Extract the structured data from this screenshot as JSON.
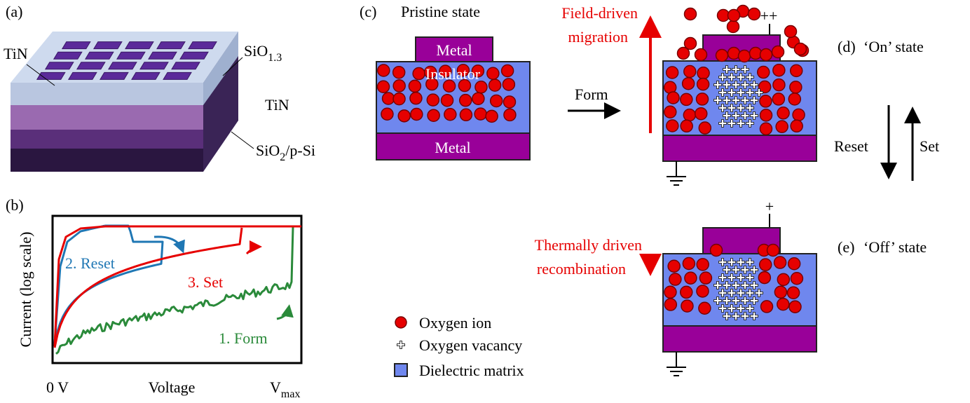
{
  "panel_a": {
    "label": "(a)",
    "top_electrode": "TiN",
    "oxide": {
      "text": "SiO",
      "subscript": "1.3"
    },
    "bottom_electrode": "TiN",
    "substrate": {
      "text": "SiO",
      "subscript": "2",
      "suffix": "/p-Si"
    }
  },
  "panel_b": {
    "label": "(b)",
    "y_axis_title": "Current (log scale)",
    "x_axis_title": "Voltage",
    "x_start": "0 V",
    "x_end": {
      "text": "V",
      "subscript": "max"
    },
    "curves": {
      "reset": "2. Reset",
      "set": "3. Set",
      "form": "1. Form"
    }
  },
  "panel_c": {
    "label": "(c)",
    "title": "Pristine state",
    "top_metal": "Metal",
    "insulator": "Insulator",
    "bottom_metal": "Metal"
  },
  "transitions": {
    "form": "Form",
    "reset": "Reset",
    "set": "Set",
    "field_driven": [
      "Field-driven",
      "migration"
    ],
    "thermally_driven": [
      "Thermally driven",
      "recombination"
    ]
  },
  "panel_d": {
    "label": "(d)",
    "title": "‘On’ state",
    "bias": "++"
  },
  "panel_e": {
    "label": "(e)",
    "title": "‘Off’ state",
    "bias": "+"
  },
  "legend": [
    "Oxygen ion",
    "Oxygen vacancy",
    "Dielectric matrix"
  ]
}
